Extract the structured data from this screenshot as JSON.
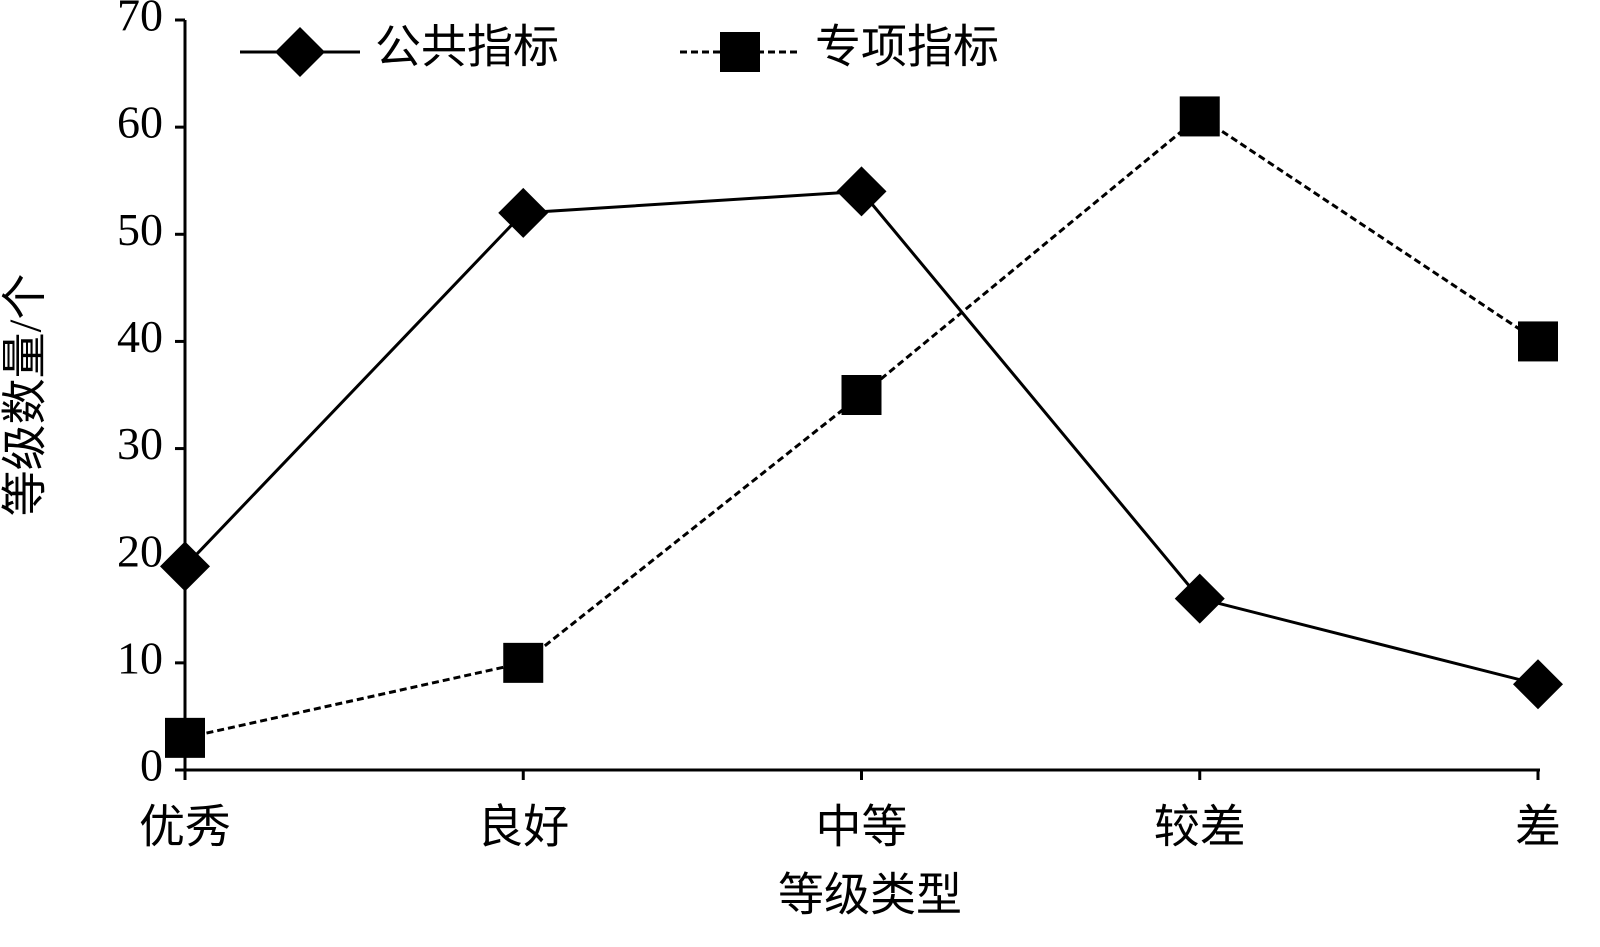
{
  "chart_data": {
    "type": "line",
    "x_label": "等级类型",
    "y_label": "等级数量/个",
    "categories": [
      "优秀",
      "良好",
      "中等",
      "较差",
      "差"
    ],
    "series": [
      {
        "name": "公共指标",
        "color": "#000000",
        "marker": "diamond",
        "linestyle": "solid",
        "values": [
          19,
          52,
          54,
          16,
          8
        ]
      },
      {
        "name": "专项指标",
        "color": "#000000",
        "marker": "square",
        "linestyle": "dashed",
        "values": [
          3,
          10,
          35,
          61,
          40
        ]
      }
    ],
    "ylim": [
      0,
      70
    ],
    "yticks": [
      0,
      10,
      20,
      30,
      40,
      50,
      60,
      70
    ],
    "grid": false,
    "legend": "top"
  }
}
